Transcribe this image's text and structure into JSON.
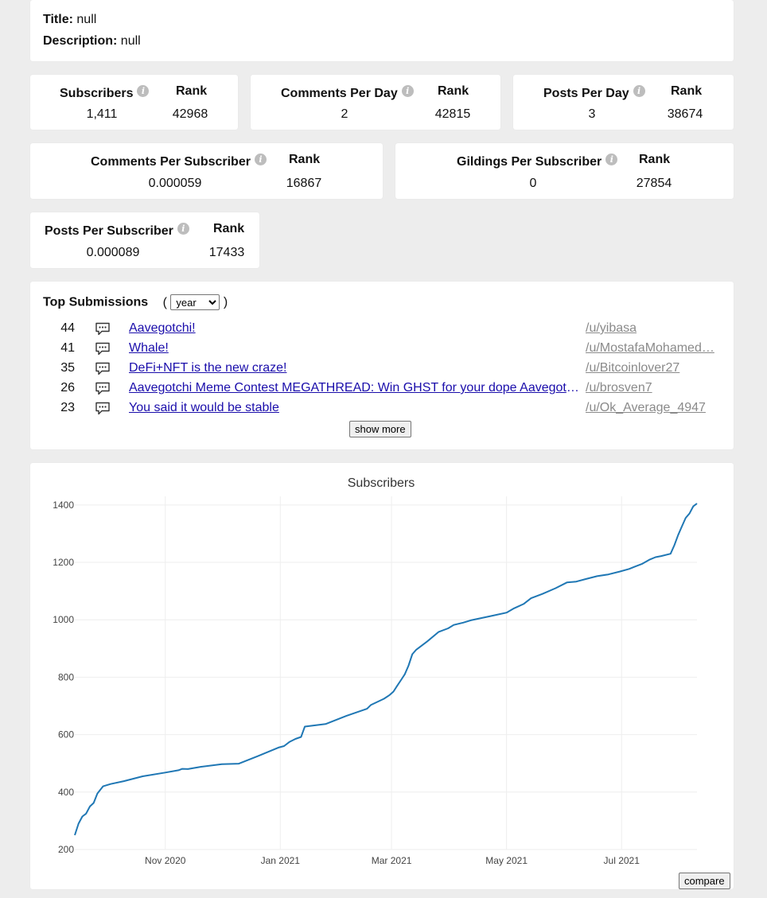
{
  "info": {
    "title_label": "Title:",
    "title_value": "null",
    "description_label": "Description:",
    "description_value": "null"
  },
  "stats": {
    "rank_label": "Rank",
    "subscribers": {
      "label": "Subscribers",
      "value": "1,411",
      "rank": "42968"
    },
    "comments_per_day": {
      "label": "Comments Per Day",
      "value": "2",
      "rank": "42815"
    },
    "posts_per_day": {
      "label": "Posts Per Day",
      "value": "3",
      "rank": "38674"
    },
    "comments_per_subscriber": {
      "label": "Comments Per Subscriber",
      "value": "0.000059",
      "rank": "16867"
    },
    "gildings_per_subscriber": {
      "label": "Gildings Per Subscriber",
      "value": "0",
      "rank": "27854"
    },
    "posts_per_subscriber": {
      "label": "Posts Per Subscriber",
      "value": "0.000089",
      "rank": "17433"
    }
  },
  "top_submissions": {
    "heading": "Top Submissions",
    "paren_open": "(",
    "paren_close": ")",
    "period_selected": "year",
    "items": [
      {
        "score": "44",
        "title": "Aavegotchi!",
        "user": "/u/yibasa"
      },
      {
        "score": "41",
        "title": "Whale!",
        "user": "/u/MostafaMohamed…"
      },
      {
        "score": "35",
        "title": "DeFi+NFT is the new craze!",
        "user": "/u/Bitcoinlover27"
      },
      {
        "score": "26",
        "title": "Aavegotchi Meme Contest MEGATHREAD: Win GHST for your dope Aavegotchi…",
        "user": "/u/brosven7"
      },
      {
        "score": "23",
        "title": "You said it would be stable",
        "user": "/u/Ok_Average_4947"
      }
    ],
    "show_more_label": "show more"
  },
  "compare_label": "compare",
  "colors": {
    "line": "#1f77b4",
    "grid": "#eeeeee",
    "link": "#1a0dab",
    "user": "#8a8a8a"
  },
  "chart_data": {
    "type": "line",
    "title": "Subscribers",
    "xlabel": "",
    "ylabel": "",
    "ylim": [
      200,
      1430
    ],
    "yticks": [
      200,
      400,
      600,
      800,
      1000,
      1200,
      1400
    ],
    "xlim": [
      "2020-09-14",
      "2021-08-10"
    ],
    "xticks": [
      {
        "date": "2020-11-01",
        "label": "Nov 2020"
      },
      {
        "date": "2021-01-01",
        "label": "Jan 2021"
      },
      {
        "date": "2021-03-01",
        "label": "Mar 2021"
      },
      {
        "date": "2021-05-01",
        "label": "May 2021"
      },
      {
        "date": "2021-07-01",
        "label": "Jul 2021"
      }
    ],
    "series": [
      {
        "name": "Subscribers",
        "points": [
          [
            "2020-09-14",
            250
          ],
          [
            "2020-09-16",
            290
          ],
          [
            "2020-09-18",
            315
          ],
          [
            "2020-09-20",
            325
          ],
          [
            "2020-09-22",
            350
          ],
          [
            "2020-09-24",
            362
          ],
          [
            "2020-09-26",
            395
          ],
          [
            "2020-09-29",
            420
          ],
          [
            "2020-10-03",
            428
          ],
          [
            "2020-10-10",
            438
          ],
          [
            "2020-10-20",
            455
          ],
          [
            "2020-11-01",
            468
          ],
          [
            "2020-11-08",
            476
          ],
          [
            "2020-11-10",
            481
          ],
          [
            "2020-11-13",
            480
          ],
          [
            "2020-11-20",
            488
          ],
          [
            "2020-12-01",
            497
          ],
          [
            "2020-12-10",
            499
          ],
          [
            "2020-12-20",
            525
          ],
          [
            "2020-12-31",
            555
          ],
          [
            "2021-01-03",
            560
          ],
          [
            "2021-01-06",
            575
          ],
          [
            "2021-01-09",
            585
          ],
          [
            "2021-01-12",
            592
          ],
          [
            "2021-01-14",
            628
          ],
          [
            "2021-01-25",
            637
          ],
          [
            "2021-02-05",
            665
          ],
          [
            "2021-02-16",
            690
          ],
          [
            "2021-02-18",
            703
          ],
          [
            "2021-02-25",
            725
          ],
          [
            "2021-02-28",
            738
          ],
          [
            "2021-03-02",
            750
          ],
          [
            "2021-03-04",
            770
          ],
          [
            "2021-03-06",
            790
          ],
          [
            "2021-03-08",
            810
          ],
          [
            "2021-03-10",
            840
          ],
          [
            "2021-03-12",
            880
          ],
          [
            "2021-03-14",
            895
          ],
          [
            "2021-03-20",
            925
          ],
          [
            "2021-03-26",
            958
          ],
          [
            "2021-03-31",
            970
          ],
          [
            "2021-04-03",
            982
          ],
          [
            "2021-04-08",
            990
          ],
          [
            "2021-04-12",
            998
          ],
          [
            "2021-04-22",
            1012
          ],
          [
            "2021-05-01",
            1025
          ],
          [
            "2021-05-05",
            1040
          ],
          [
            "2021-05-10",
            1055
          ],
          [
            "2021-05-14",
            1075
          ],
          [
            "2021-05-20",
            1090
          ],
          [
            "2021-05-27",
            1110
          ],
          [
            "2021-06-02",
            1130
          ],
          [
            "2021-06-07",
            1133
          ],
          [
            "2021-06-12",
            1142
          ],
          [
            "2021-06-18",
            1152
          ],
          [
            "2021-06-24",
            1158
          ],
          [
            "2021-06-30",
            1168
          ],
          [
            "2021-07-05",
            1177
          ],
          [
            "2021-07-08",
            1185
          ],
          [
            "2021-07-12",
            1195
          ],
          [
            "2021-07-16",
            1210
          ],
          [
            "2021-07-19",
            1218
          ],
          [
            "2021-07-22",
            1222
          ],
          [
            "2021-07-27",
            1230
          ],
          [
            "2021-07-29",
            1260
          ],
          [
            "2021-07-31",
            1295
          ],
          [
            "2021-08-02",
            1325
          ],
          [
            "2021-08-04",
            1355
          ],
          [
            "2021-08-06",
            1370
          ],
          [
            "2021-08-08",
            1395
          ],
          [
            "2021-08-10",
            1405
          ]
        ]
      }
    ]
  }
}
